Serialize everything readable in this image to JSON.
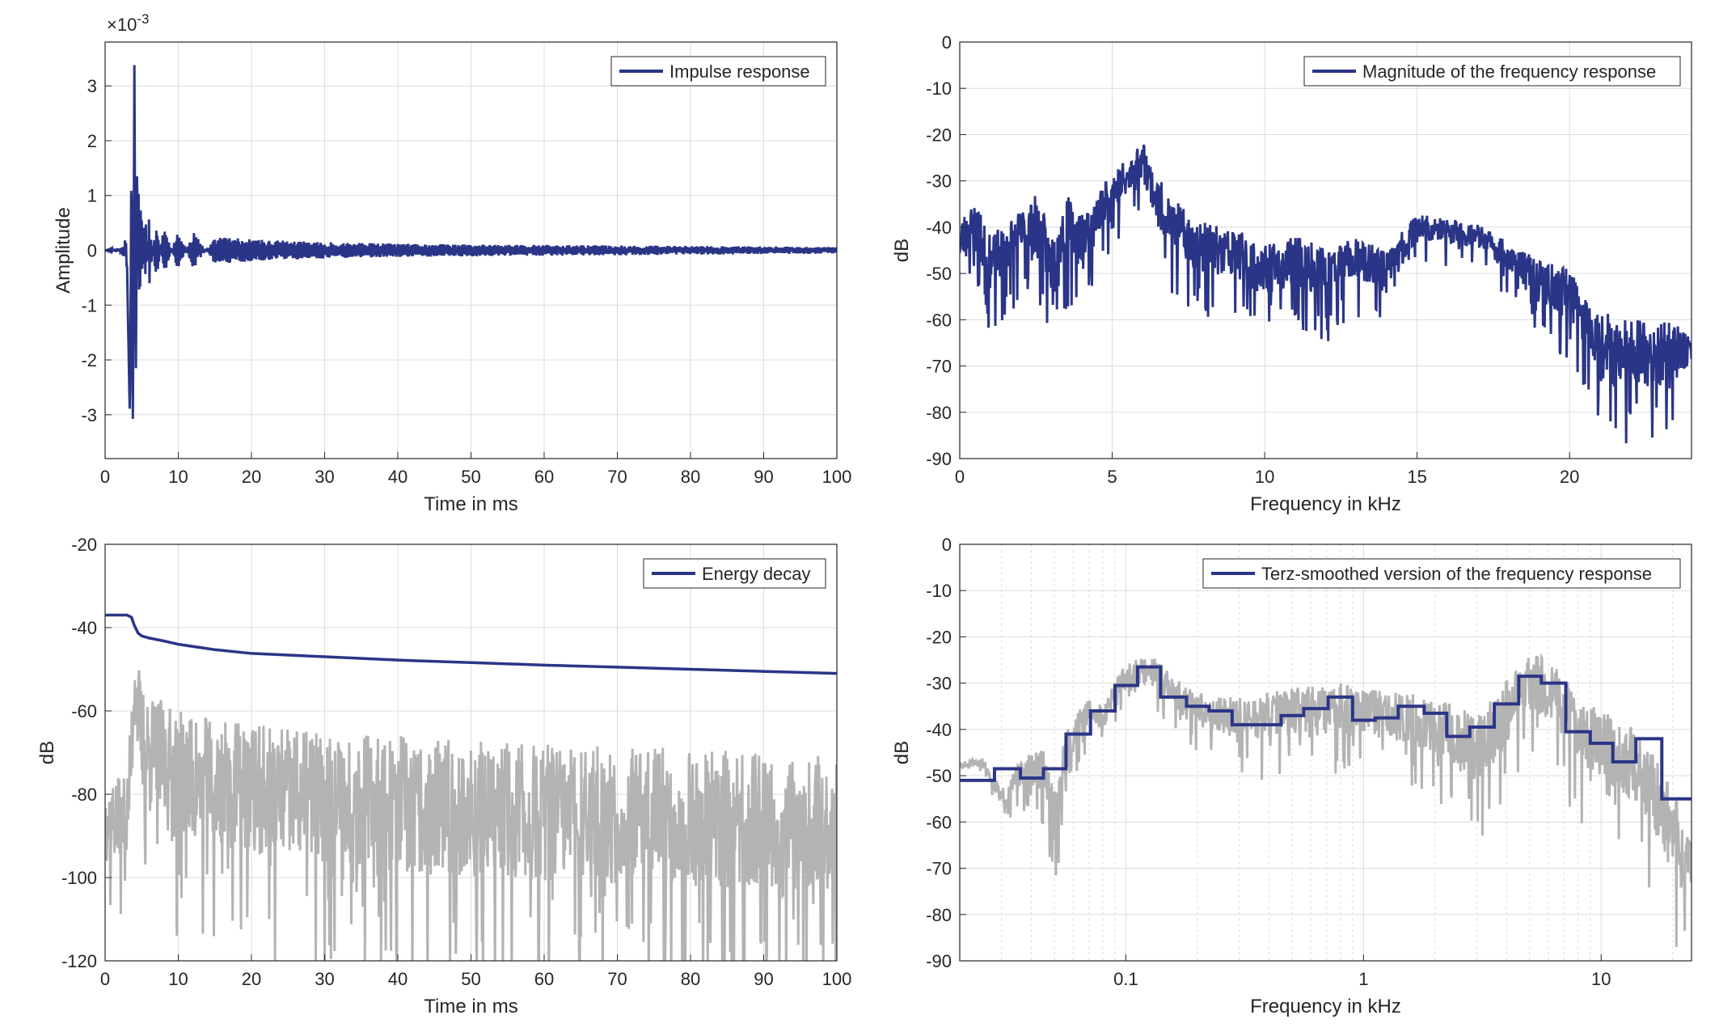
{
  "colors": {
    "series": "#2b3587",
    "raw": "#b3b3b3",
    "grid": "#dcdcdc",
    "axis": "#262626"
  },
  "chart_data": [
    {
      "id": "impulse",
      "type": "line",
      "xlabel": "Time in ms",
      "ylabel": "Amplitude",
      "exponent_label": "×10",
      "exponent_power": "-3",
      "xlim": [
        0,
        100
      ],
      "ylim": [
        -3.8,
        3.8
      ],
      "xscale": "linear",
      "xticks": [
        0,
        10,
        20,
        30,
        40,
        50,
        60,
        70,
        80,
        90,
        100
      ],
      "yticks": [
        -3,
        -2,
        -1,
        0,
        1,
        2,
        3
      ],
      "grid": true,
      "legend_position": "top-right",
      "series": [
        {
          "name": "Impulse response",
          "color": "#2b3587",
          "x": [
            0,
            2.0,
            3.0,
            3.4,
            3.6,
            3.8,
            4.0,
            4.2,
            4.4,
            4.6,
            4.8,
            5.0,
            5.5,
            6.0,
            7.0,
            8.0,
            10.0,
            12.0,
            15.0,
            20.0,
            30.0,
            40.0,
            60.0,
            80.0,
            100.0
          ],
          "y": [
            0.0,
            0.05,
            -0.3,
            -3.2,
            1.8,
            -3.45,
            3.38,
            -2.5,
            2.4,
            -1.9,
            1.5,
            -1.2,
            0.9,
            -0.7,
            0.6,
            -0.5,
            0.4,
            -0.35,
            0.25,
            0.2,
            0.15,
            0.12,
            0.1,
            0.08,
            0.06
          ],
          "envelope": true,
          "noise_seed": 11
        }
      ]
    },
    {
      "id": "magnitude",
      "type": "line",
      "xlabel": "Frequency in kHz",
      "ylabel": "dB",
      "xlim": [
        0,
        24
      ],
      "ylim": [
        -90,
        0
      ],
      "xscale": "linear",
      "xticks": [
        0,
        5,
        10,
        15,
        20
      ],
      "yticks": [
        0,
        -10,
        -20,
        -30,
        -40,
        -50,
        -60,
        -70,
        -80,
        -90
      ],
      "grid": true,
      "legend_position": "top-right",
      "series": [
        {
          "name": "Magnitude of the frequency response",
          "color": "#2b3587",
          "x": [
            0,
            0.5,
            1.0,
            1.5,
            2.0,
            2.5,
            3.0,
            3.5,
            4.0,
            4.5,
            5.0,
            5.5,
            6.0,
            6.5,
            7.0,
            8.0,
            9.0,
            10.0,
            11.0,
            12.0,
            13.0,
            14.0,
            14.5,
            15.0,
            16.0,
            17.0,
            18.0,
            19.0,
            20.0,
            21.0,
            22.0,
            23.0,
            24.0
          ],
          "y": [
            -43,
            -40,
            -48,
            -45,
            -42,
            -40,
            -48,
            -40,
            -42,
            -38,
            -32,
            -30,
            -25,
            -35,
            -40,
            -45,
            -46,
            -50,
            -48,
            -50,
            -47,
            -50,
            -45,
            -40,
            -41,
            -42,
            -47,
            -52,
            -55,
            -65,
            -68,
            -68,
            -66
          ],
          "spread": [
            5,
            6,
            6,
            6,
            6,
            7,
            7,
            7,
            6,
            5,
            5,
            5,
            4,
            6,
            6,
            6,
            6,
            6,
            6,
            6,
            5,
            5,
            4,
            3,
            3,
            3,
            4,
            5,
            6,
            7,
            8,
            8,
            4
          ],
          "noise_seed": 23
        }
      ]
    },
    {
      "id": "energy",
      "type": "line",
      "xlabel": "Time in ms",
      "ylabel": "dB",
      "xlim": [
        0,
        100
      ],
      "ylim": [
        -120,
        -20
      ],
      "xscale": "linear",
      "xticks": [
        0,
        10,
        20,
        30,
        40,
        50,
        60,
        70,
        80,
        90,
        100
      ],
      "yticks": [
        -20,
        -40,
        -60,
        -80,
        -100,
        -120
      ],
      "grid": true,
      "legend_position": "top-right",
      "series": [
        {
          "name": "Energy decay",
          "color": "#2b3587",
          "x": [
            0,
            3.0,
            3.6,
            4.0,
            4.5,
            5.0,
            6.0,
            8.0,
            10.0,
            15.0,
            20.0,
            30.0,
            40.0,
            50.0,
            60.0,
            70.0,
            80.0,
            90.0,
            100.0
          ],
          "y": [
            -37,
            -37,
            -37.5,
            -39.5,
            -41.3,
            -42,
            -42.5,
            -43.2,
            -44,
            -45.3,
            -46.2,
            -47,
            -47.8,
            -48.4,
            -49,
            -49.5,
            -50,
            -50.5,
            -51
          ]
        },
        {
          "name": "",
          "color": "#b3b3b3",
          "x": [
            0,
            3.0,
            3.6,
            4.0,
            5.0,
            10.0,
            20.0,
            40.0,
            60.0,
            80.0,
            100.0
          ],
          "y": [
            -86,
            -86,
            -70,
            -52,
            -68,
            -76,
            -80,
            -84,
            -86,
            -87,
            -88
          ],
          "spread": [
            10,
            10,
            12,
            12,
            14,
            16,
            17,
            18,
            18,
            18,
            18
          ],
          "noise_seed": 37
        }
      ]
    },
    {
      "id": "terz",
      "type": "line",
      "xlabel": "Frequency in kHz",
      "ylabel": "dB",
      "xlim": [
        0.02,
        24
      ],
      "ylim": [
        -90,
        0
      ],
      "xscale": "log",
      "xticks": [
        0.1,
        1,
        10
      ],
      "xtick_labels": [
        "0.1",
        "1",
        "10"
      ],
      "yticks": [
        0,
        -10,
        -20,
        -30,
        -40,
        -50,
        -60,
        -70,
        -80,
        -90
      ],
      "grid": true,
      "legend_position": "top-right",
      "series": [
        {
          "name": "Terz-smoothed version of the frequency response",
          "color": "#2b3587",
          "steps": [
            [
              0.02,
              -51
            ],
            [
              0.028,
              -48.5
            ],
            [
              0.036,
              -50.5
            ],
            [
              0.045,
              -48.5
            ],
            [
              0.056,
              -41
            ],
            [
              0.071,
              -36
            ],
            [
              0.09,
              -30.5
            ],
            [
              0.112,
              -26.5
            ],
            [
              0.14,
              -33
            ],
            [
              0.18,
              -35
            ],
            [
              0.224,
              -36
            ],
            [
              0.28,
              -39
            ],
            [
              0.45,
              -37
            ],
            [
              0.56,
              -35.5
            ],
            [
              0.71,
              -33
            ],
            [
              0.9,
              -38
            ],
            [
              1.12,
              -37.5
            ],
            [
              1.4,
              -35
            ],
            [
              1.8,
              -36.5
            ],
            [
              2.24,
              -41.5
            ],
            [
              2.8,
              -39.5
            ],
            [
              3.55,
              -34.5
            ],
            [
              4.5,
              -28.5
            ],
            [
              5.6,
              -30
            ],
            [
              7.1,
              -40.5
            ],
            [
              9.0,
              -43
            ],
            [
              11.2,
              -47
            ],
            [
              14.0,
              -42
            ],
            [
              18.0,
              -55
            ],
            [
              24.0,
              -55
            ]
          ]
        },
        {
          "name": "",
          "color": "#b3b3b3",
          "x": [
            0.02,
            0.025,
            0.03,
            0.036,
            0.04,
            0.045,
            0.05,
            0.056,
            0.063,
            0.07,
            0.08,
            0.09,
            0.1,
            0.11,
            0.13,
            0.16,
            0.2,
            0.3,
            0.5,
            0.8,
            1.0,
            1.5,
            2.0,
            3.0,
            4.0,
            5.0,
            6.0,
            8.0,
            10.0,
            15.0,
            20.0,
            24.0
          ],
          "y": [
            -48,
            -47,
            -55,
            -50,
            -49,
            -49,
            -60,
            -45,
            -40,
            -36,
            -38,
            -32,
            -29,
            -28,
            -27,
            -33,
            -36,
            -38,
            -37,
            -36,
            -37,
            -38,
            -40,
            -45,
            -37,
            -30,
            -32,
            -40,
            -44,
            -50,
            -63,
            -70
          ],
          "spread": [
            1,
            1,
            2,
            3,
            4,
            5,
            6,
            6,
            4,
            3,
            3,
            3,
            3,
            3,
            3,
            4,
            4,
            5,
            6,
            6,
            6,
            6,
            7,
            8,
            8,
            7,
            7,
            8,
            8,
            9,
            10,
            10
          ],
          "noise_seed": 51
        }
      ]
    }
  ]
}
